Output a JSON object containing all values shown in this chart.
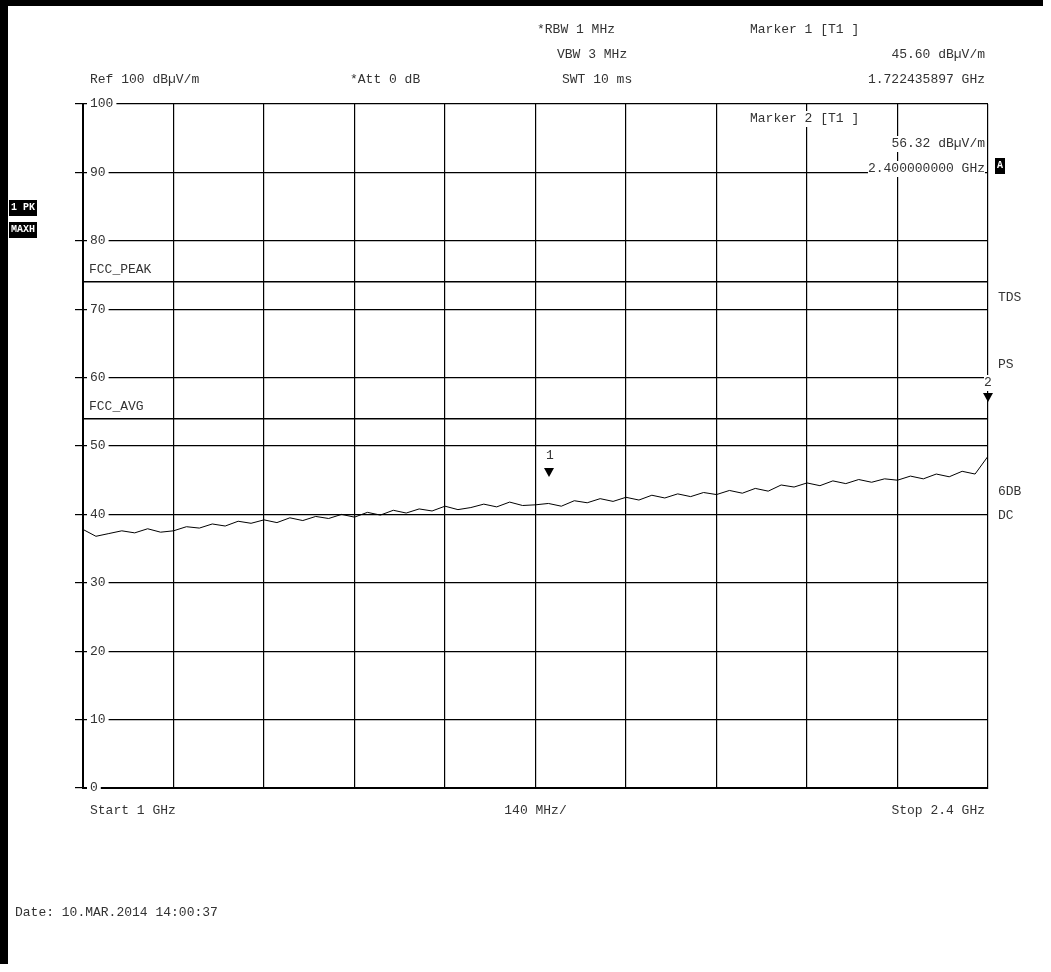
{
  "chart_data": {
    "type": "line",
    "xlabel": "140 MHz/",
    "categories": [
      null,
      null,
      null,
      null,
      null,
      null,
      null,
      null,
      null,
      null,
      null,
      null,
      null,
      null,
      null,
      null,
      null,
      null,
      null,
      null,
      null,
      null,
      null,
      null,
      null,
      null,
      null,
      null,
      null,
      null,
      null,
      null,
      null,
      null,
      null,
      null,
      null,
      null,
      null,
      null,
      null,
      null,
      null,
      null,
      null,
      null,
      null,
      null,
      null,
      null,
      null,
      null,
      null,
      null,
      null,
      null,
      null,
      null,
      null,
      null,
      null,
      null,
      null,
      null,
      null,
      null,
      null,
      null,
      null,
      null,
      null
    ],
    "ylim": [
      0,
      100
    ],
    "yticks": [
      0,
      10,
      20,
      30,
      40,
      50,
      60,
      70,
      80,
      90,
      100
    ],
    "grid": true,
    "legend": false,
    "marker": "none",
    "series": [
      {
        "color": "#000000",
        "values": [
          37.8,
          36.8,
          37.2,
          37.6,
          37.3,
          37.9,
          37.4,
          37.6,
          38.2,
          38.0,
          38.6,
          38.3,
          39.0,
          38.7,
          39.2,
          38.8,
          39.5,
          39.1,
          39.7,
          39.4,
          40.0,
          39.6,
          40.3,
          39.9,
          40.6,
          40.2,
          40.8,
          40.5,
          41.2,
          40.7,
          41.0,
          41.5,
          41.1,
          41.8,
          41.3,
          41.4,
          41.6,
          41.2,
          42.0,
          41.7,
          42.3,
          41.9,
          42.5,
          42.1,
          42.8,
          42.4,
          43.0,
          42.6,
          43.2,
          42.9,
          43.5,
          43.1,
          43.8,
          43.4,
          44.3,
          44.0,
          44.6,
          44.2,
          44.9,
          44.5,
          45.1,
          44.7,
          45.2,
          45.0,
          45.6,
          45.2,
          45.9,
          45.5,
          46.3,
          45.9,
          48.5
        ]
      }
    ],
    "ref_lines": [
      {
        "axis": "y",
        "value": 74,
        "label": "FCC_PEAK",
        "color": "#000000"
      },
      {
        "axis": "y",
        "value": 54,
        "label": "FCC_AVG",
        "color": "#000000"
      }
    ],
    "annotations": [
      "*RBW 1 MHz",
      "VBW 3 MHz",
      "SWT 10 ms",
      "Ref 100 dBµV/m",
      "*Att 0 dB",
      "Marker 1 [T1 ]",
      "45.60 dBµV/m",
      "1.722435897 GHz",
      "Marker 2 [T1 ]",
      "56.32 dBµV/m",
      "2.400000000 GHz",
      "1 PK",
      "MAXH",
      "A",
      "TDS",
      "PS",
      "6DB",
      "DC",
      "Start 1 GHz",
      "Stop 2.4 GHz",
      "Date: 10.MAR.2014 14:00:37",
      "1",
      "2"
    ]
  }
}
